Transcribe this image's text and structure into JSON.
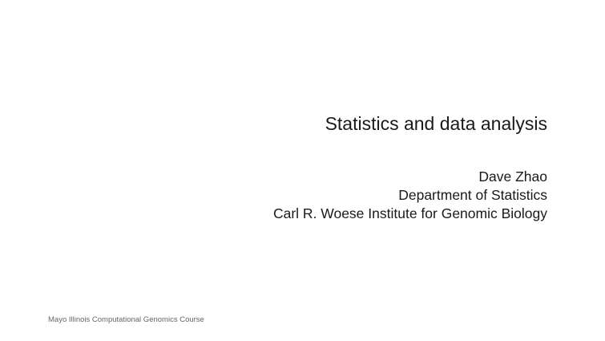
{
  "slide": {
    "title": "Statistics and data analysis",
    "author": "Dave Zhao",
    "department": "Department of Statistics",
    "institute": "Carl R. Woese Institute for Genomic Biology",
    "footer": "Mayo Illinois Computational Genomics Course"
  }
}
